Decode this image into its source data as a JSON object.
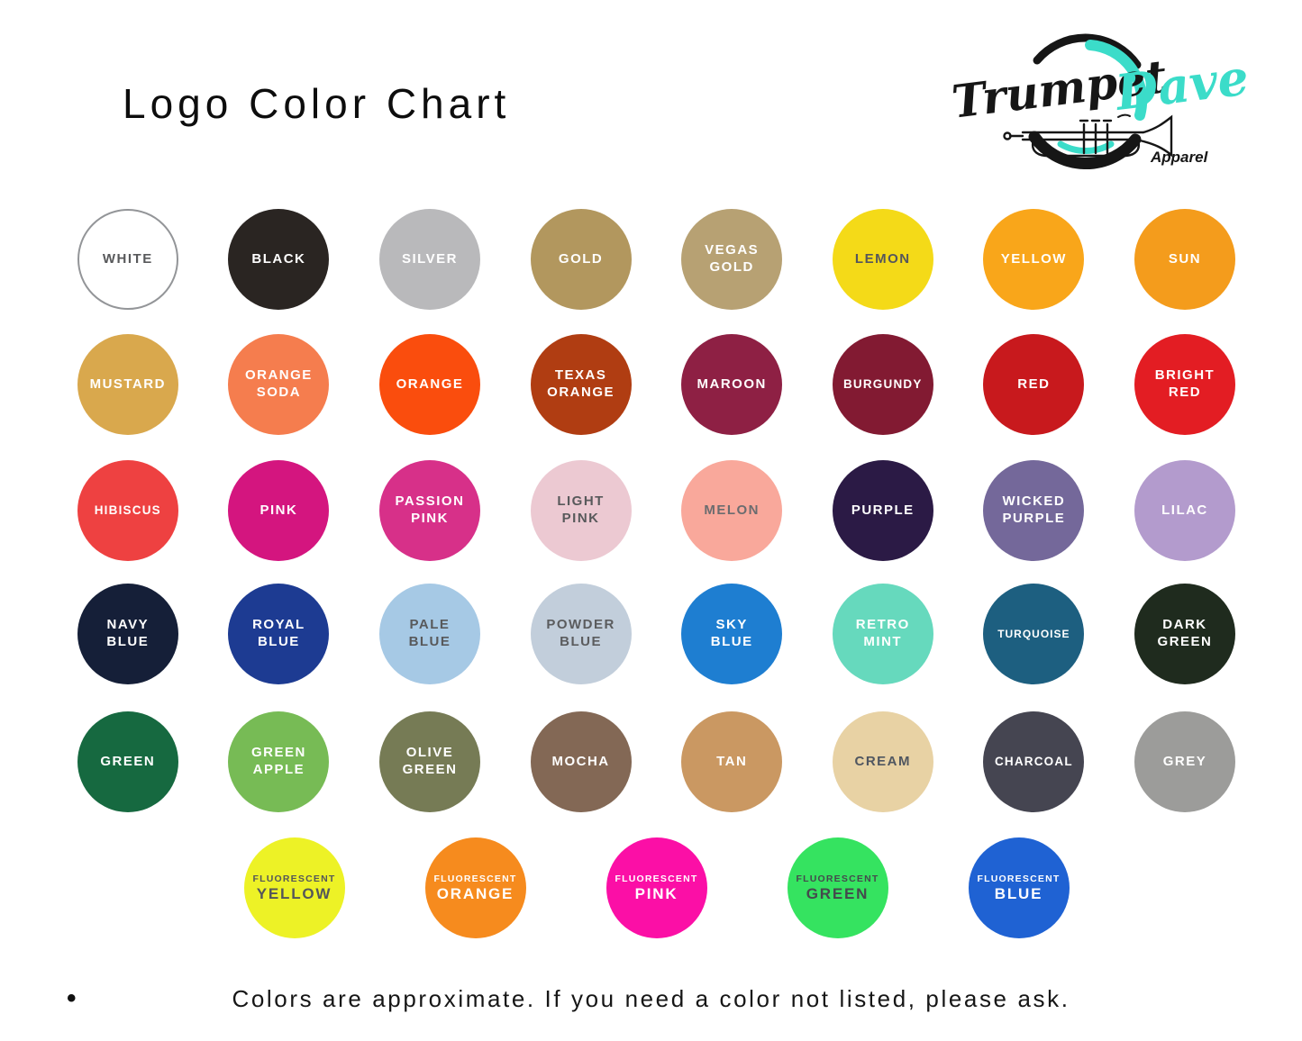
{
  "page": {
    "title": "Logo Color Chart",
    "footnote_bullet": "•",
    "footnote": "Colors are approximate. If you need a color not listed, please ask."
  },
  "logo": {
    "word1": "Trumpet",
    "word2": "Dave",
    "word3": "Apparel",
    "accent": "#3bdcc9",
    "ink": "#161616"
  },
  "swatch_rows": [
    {
      "swatches": [
        {
          "name": "white",
          "label": "WHITE",
          "bg": "#ffffff",
          "fg": "#58595b",
          "border": "#939598"
        },
        {
          "name": "black",
          "label": "BLACK",
          "bg": "#2a2522",
          "fg": "#ffffff"
        },
        {
          "name": "silver",
          "label": "SILVER",
          "bg": "#b9b9bb",
          "fg": "#ffffff"
        },
        {
          "name": "gold",
          "label": "GOLD",
          "bg": "#b2975e",
          "fg": "#ffffff"
        },
        {
          "name": "vegas-gold",
          "label": "VEGAS\nGOLD",
          "bg": "#b7a173",
          "fg": "#ffffff"
        },
        {
          "name": "lemon",
          "label": "LEMON",
          "bg": "#f4da18",
          "fg": "#55565c"
        },
        {
          "name": "yellow",
          "label": "YELLOW",
          "bg": "#f9a61a",
          "fg": "#ffffff"
        },
        {
          "name": "sun",
          "label": "SUN",
          "bg": "#f49c1c",
          "fg": "#ffffff"
        }
      ]
    },
    {
      "swatches": [
        {
          "name": "mustard",
          "label": "MUSTARD",
          "bg": "#d9a84d",
          "fg": "#ffffff"
        },
        {
          "name": "orange-soda",
          "label": "ORANGE\nSODA",
          "bg": "#f57d4e",
          "fg": "#ffffff"
        },
        {
          "name": "orange",
          "label": "ORANGE",
          "bg": "#fa4d0d",
          "fg": "#ffffff"
        },
        {
          "name": "texas-orange",
          "label": "TEXAS\nORANGE",
          "bg": "#b03d12",
          "fg": "#ffffff"
        },
        {
          "name": "maroon",
          "label": "MAROON",
          "bg": "#8e2044",
          "fg": "#ffffff"
        },
        {
          "name": "burgundy",
          "label": "BURGUNDY",
          "bg": "#821a32",
          "fg": "#ffffff",
          "size": "mid"
        },
        {
          "name": "red",
          "label": "RED",
          "bg": "#c8191d",
          "fg": "#ffffff"
        },
        {
          "name": "bright-red",
          "label": "BRIGHT\nRED",
          "bg": "#e31d23",
          "fg": "#ffffff"
        }
      ]
    },
    {
      "swatches": [
        {
          "name": "hibiscus",
          "label": "HIBISCUS",
          "bg": "#ee4141",
          "fg": "#ffffff",
          "size": "mid"
        },
        {
          "name": "pink",
          "label": "PINK",
          "bg": "#d4157f",
          "fg": "#ffffff"
        },
        {
          "name": "passion-pink",
          "label": "PASSION\nPINK",
          "bg": "#d73089",
          "fg": "#ffffff"
        },
        {
          "name": "light-pink",
          "label": "LIGHT\nPINK",
          "bg": "#ecc9d2",
          "fg": "#58595b"
        },
        {
          "name": "melon",
          "label": "MELON",
          "bg": "#f9a89b",
          "fg": "#6b6c6f"
        },
        {
          "name": "purple",
          "label": "PURPLE",
          "bg": "#2b1a45",
          "fg": "#ffffff"
        },
        {
          "name": "wicked-purple",
          "label": "WICKED\nPURPLE",
          "bg": "#74689a",
          "fg": "#ffffff"
        },
        {
          "name": "lilac",
          "label": "LILAC",
          "bg": "#b39bcd",
          "fg": "#ffffff"
        }
      ]
    },
    {
      "swatches": [
        {
          "name": "navy-blue",
          "label": "NAVY\nBLUE",
          "bg": "#151f38",
          "fg": "#ffffff"
        },
        {
          "name": "royal-blue",
          "label": "ROYAL\nBLUE",
          "bg": "#1d3b92",
          "fg": "#ffffff"
        },
        {
          "name": "pale-blue",
          "label": "PALE\nBLUE",
          "bg": "#a6c9e5",
          "fg": "#58595b"
        },
        {
          "name": "powder-blue",
          "label": "POWDER\nBLUE",
          "bg": "#c2cedb",
          "fg": "#5b5c5e"
        },
        {
          "name": "sky-blue",
          "label": "SKY\nBLUE",
          "bg": "#1e7ed1",
          "fg": "#ffffff"
        },
        {
          "name": "retro-mint",
          "label": "RETRO\nMINT",
          "bg": "#66d9bd",
          "fg": "#ffffff"
        },
        {
          "name": "turquoise",
          "label": "TURQUOISE",
          "bg": "#1d5f80",
          "fg": "#ffffff",
          "size": "small"
        },
        {
          "name": "dark-green",
          "label": "DARK\nGREEN",
          "bg": "#1f2b1e",
          "fg": "#ffffff"
        }
      ]
    },
    {
      "swatches": [
        {
          "name": "green",
          "label": "GREEN",
          "bg": "#166940",
          "fg": "#ffffff"
        },
        {
          "name": "green-apple",
          "label": "GREEN\nAPPLE",
          "bg": "#77bb55",
          "fg": "#ffffff"
        },
        {
          "name": "olive-green",
          "label": "OLIVE\nGREEN",
          "bg": "#767b55",
          "fg": "#ffffff"
        },
        {
          "name": "mocha",
          "label": "MOCHA",
          "bg": "#836855",
          "fg": "#ffffff"
        },
        {
          "name": "tan",
          "label": "TAN",
          "bg": "#ca9862",
          "fg": "#ffffff"
        },
        {
          "name": "cream",
          "label": "CREAM",
          "bg": "#e8d2a4",
          "fg": "#4f5660"
        },
        {
          "name": "charcoal",
          "label": "CHARCOAL",
          "bg": "#454551",
          "fg": "#ffffff",
          "size": "mid"
        },
        {
          "name": "grey",
          "label": "GREY",
          "bg": "#9c9c9a",
          "fg": "#ffffff"
        }
      ]
    },
    {
      "swatches": [
        {
          "name": "fluorescent-yellow",
          "label_top": "FLUORESCENT",
          "label": "YELLOW",
          "bg": "#edf226",
          "fg": "#54565a"
        },
        {
          "name": "fluorescent-orange",
          "label_top": "FLUORESCENT",
          "label": "ORANGE",
          "bg": "#f68b1e",
          "fg": "#ffffff"
        },
        {
          "name": "fluorescent-pink",
          "label_top": "FLUORESCENT",
          "label": "PINK",
          "bg": "#fb0fa6",
          "fg": "#ffffff"
        },
        {
          "name": "fluorescent-green",
          "label_top": "FLUORESCENT",
          "label": "GREEN",
          "bg": "#35e360",
          "fg": "#45494d"
        },
        {
          "name": "fluorescent-blue",
          "label_top": "FLUORESCENT",
          "label": "BLUE",
          "bg": "#1f62d3",
          "fg": "#ffffff"
        }
      ]
    }
  ]
}
